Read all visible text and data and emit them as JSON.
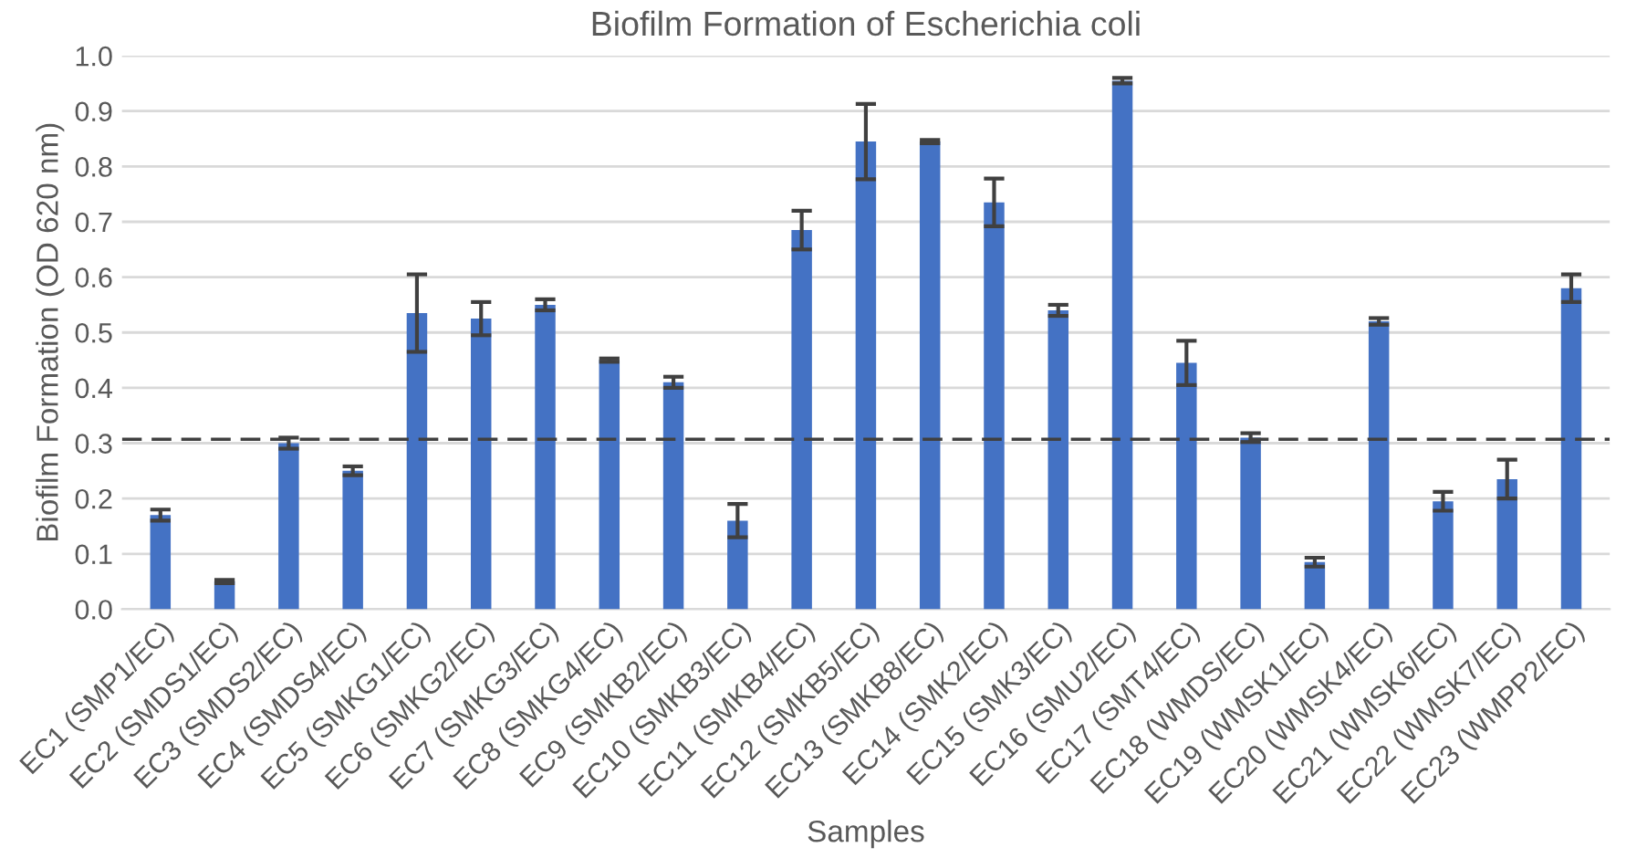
{
  "chart_data": {
    "type": "bar",
    "title": "Biofilm Formation of Escherichia coli",
    "xlabel": "Samples",
    "ylabel": "Biofilm Formation (OD 620 nm)",
    "categories": [
      "EC1 (SMP1/EC)",
      "EC2 (SMDS1/EC)",
      "EC3 (SMDS2/EC)",
      "EC4 (SMDS4/EC)",
      "EC5 (SMKG1/EC)",
      "EC6 (SMKG2/EC)",
      "EC7 (SMKG3/EC)",
      "EC8 (SMKG4/EC)",
      "EC9 (SMKB2/EC)",
      "EC10 (SMKB3/EC)",
      "EC11 (SMKB4/EC)",
      "EC12 (SMKB5/EC)",
      "EC13 (SMKB8/EC)",
      "EC14 (SMK2/EC)",
      "EC15 (SMK3/EC)",
      "EC16 (SMU2/EC)",
      "EC17 (SMT4/EC)",
      "EC18 (WMDS/EC)",
      "EC19 (WMSK1/EC)",
      "EC20 (WMSK4/EC)",
      "EC21 (WMSK6/EC)",
      "EC22 (WMSK7/EC)",
      "EC23 (WMPP2/EC)"
    ],
    "values": [
      0.17,
      0.05,
      0.3,
      0.25,
      0.535,
      0.525,
      0.55,
      0.45,
      0.41,
      0.16,
      0.685,
      0.845,
      0.845,
      0.735,
      0.54,
      0.955,
      0.445,
      0.31,
      0.085,
      0.52,
      0.195,
      0.235,
      0.58
    ],
    "errors": [
      0.01,
      0.003,
      0.01,
      0.008,
      0.07,
      0.03,
      0.01,
      0.003,
      0.01,
      0.03,
      0.035,
      0.068,
      0.003,
      0.043,
      0.01,
      0.005,
      0.04,
      0.008,
      0.008,
      0.006,
      0.017,
      0.035,
      0.025
    ],
    "color": "#4472c4",
    "ylim": [
      0,
      1.0
    ],
    "yticks": [
      {
        "value": 0,
        "label": "0.0"
      },
      0.1,
      0.2,
      0.3,
      0.4,
      0.5,
      0.6,
      0.7,
      0.8,
      0.9,
      {
        "value": 1.0,
        "label": "1.0"
      }
    ],
    "ref_lines": [
      {
        "axis": "y",
        "value": 0.307,
        "color": "#404040",
        "line_style": "dashed"
      }
    ],
    "grid": "y",
    "legend": false
  }
}
